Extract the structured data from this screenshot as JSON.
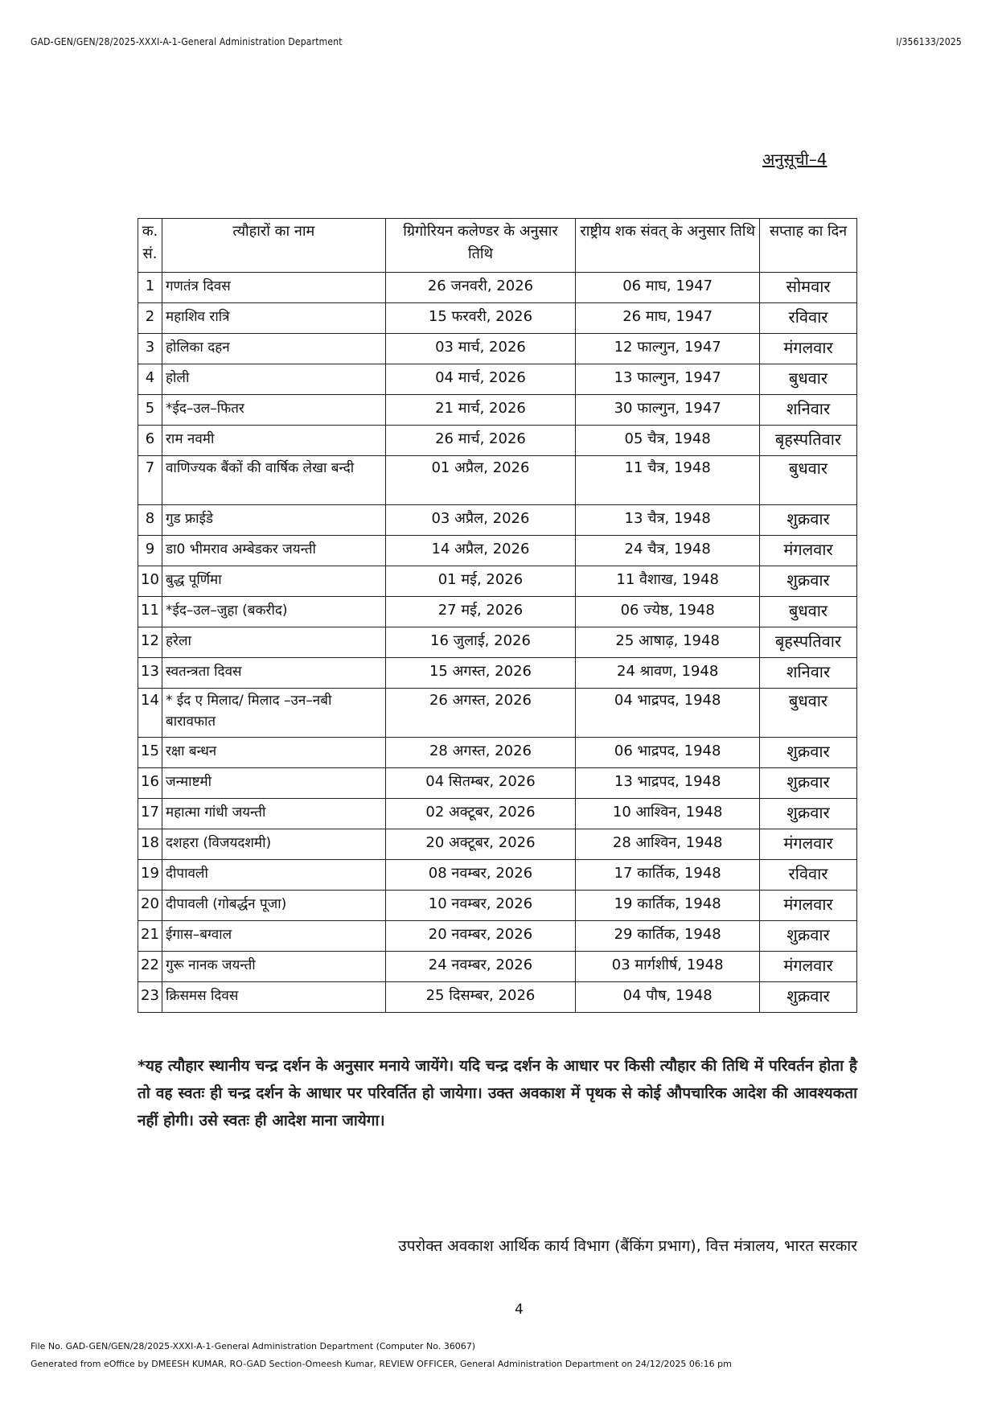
{
  "header": {
    "left": "GAD-GEN/GEN/28/2025-XXXI-A-1-General Administration Department",
    "right": "I/356133/2025"
  },
  "schedule_label": "अनुसूची–4",
  "table": {
    "columns": [
      "क. सं.",
      "त्यौहारों का नाम",
      "ग्रिगोरियन कलेण्डर के अनुसार तिथि",
      "राष्ट्रीय शक संवत् के अनुसार तिथि",
      "सप्ताह का दिन"
    ],
    "rows": [
      [
        "1",
        "गणतंत्र दिवस",
        "26 जनवरी, 2026",
        "06 माघ, 1947",
        "सोमवार"
      ],
      [
        "2",
        "महाशिव रात्रि",
        "15 फरवरी, 2026",
        "26 माघ, 1947",
        "रविवार"
      ],
      [
        "3",
        "होलिका दहन",
        "03 मार्च, 2026",
        "12 फाल्गुन, 1947",
        "मंगलवार"
      ],
      [
        "4",
        "होली",
        "04 मार्च, 2026",
        "13 फाल्गुन, 1947",
        "बुधवार"
      ],
      [
        "5",
        "*ईद–उल–फितर",
        "21 मार्च, 2026",
        "30 फाल्गुन, 1947",
        "शनिवार"
      ],
      [
        "6",
        "राम नवमी",
        "26 मार्च, 2026",
        "05 चैत्र, 1948",
        "बृहस्पतिवार"
      ],
      [
        "7",
        "वाणिज्यक बैंकों की वार्षिक लेखा बन्दी",
        "01 अप्रैल, 2026",
        "11 चैत्र, 1948",
        "बुधवार"
      ],
      [
        "8",
        "गुड फ्राईडे",
        "03 अप्रैल, 2026",
        "13 चैत्र, 1948",
        "शुक्रवार"
      ],
      [
        "9",
        "डा0 भीमराव अम्बेडकर जयन्ती",
        "14 अप्रैल, 2026",
        "24 चैत्र, 1948",
        "मंगलवार"
      ],
      [
        "10",
        "बुद्ध पूर्णिमा",
        "01 मई, 2026",
        "11 वैशाख, 1948",
        "शुक्रवार"
      ],
      [
        "11",
        "*ईद–उल–जुहा (बकरीद)",
        "27 मई, 2026",
        "06 ज्येष्ठ, 1948",
        "बुधवार"
      ],
      [
        "12",
        "हरेला",
        "16 जुलाई, 2026",
        "25 आषाढ़, 1948",
        "बृहस्पतिवार"
      ],
      [
        "13",
        "स्वतन्त्रता दिवस",
        "15 अगस्त, 2026",
        "24 श्रावण, 1948",
        "शनिवार"
      ],
      [
        "14",
        "* ईद ए मिलाद/ मिलाद –उन–नबी बारावफात",
        "26 अगस्त, 2026",
        "04 भाद्रपद, 1948",
        "बुधवार"
      ],
      [
        "15",
        "रक्षा बन्धन",
        "28 अगस्त, 2026",
        "06 भाद्रपद, 1948",
        "शुक्रवार"
      ],
      [
        "16",
        "जन्माष्टमी",
        "04 सितम्बर, 2026",
        "13 भाद्रपद, 1948",
        "शुक्रवार"
      ],
      [
        "17",
        "महात्मा गांधी जयन्ती",
        "02 अक्टूबर, 2026",
        "10 आश्विन, 1948",
        "शुक्रवार"
      ],
      [
        "18",
        "दशहरा (विजयदशमी)",
        "20 अक्टूबर, 2026",
        "28 आश्विन, 1948",
        "मंगलवार"
      ],
      [
        "19",
        "दीपावली",
        "08 नवम्बर, 2026",
        "17 कार्तिक, 1948",
        "रविवार"
      ],
      [
        "20",
        "दीपावली (गोबर्द्धन पूजा)",
        "10 नवम्बर, 2026",
        "19 कार्तिक, 1948",
        "मंगलवार"
      ],
      [
        "21",
        "ईगास–बग्वाल",
        "20 नवम्बर, 2026",
        "29 कार्तिक, 1948",
        "शुक्रवार"
      ],
      [
        "22",
        "गुरू नानक जयन्ती",
        "24 नवम्बर, 2026",
        "03 मार्गशीर्ष, 1948",
        "मंगलवार"
      ],
      [
        "23",
        "क्रिसमस दिवस",
        "25 दिसम्बर, 2026",
        "04 पौष, 1948",
        "शुक्रवार"
      ]
    ]
  },
  "note": "*यह त्यौहार स्थानीय चन्द्र दर्शन के अनुसार मनाये जायेंगे। यदि चन्द्र दर्शन के आधार पर किसी त्यौहार की तिथि में परिवर्तन होता है तो वह स्वतः ही चन्द्र दर्शन के आधार पर परिवर्तित हो जायेगा। उक्त अवकाश में पृथक से कोई औपचारिक आदेश की आवश्यकता नहीं होगी। उसे स्वतः ही आदेश माना जायेगा।",
  "credit": "उपरोक्त अवकाश आर्थिक कार्य विभाग (बैंकिंग प्रभाग), वित्त मंत्रालय, भारत सरकार",
  "page_number": "4",
  "footer": {
    "file_no": "File No. GAD-GEN/GEN/28/2025-XXXI-A-1-General Administration Department (Computer No. 36067)",
    "generated": "Generated from eOffice by DMEESH KUMAR, RO-GAD Section-Omeesh Kumar, REVIEW OFFICER, General Administration Department on 24/12/2025 06:16 pm"
  }
}
